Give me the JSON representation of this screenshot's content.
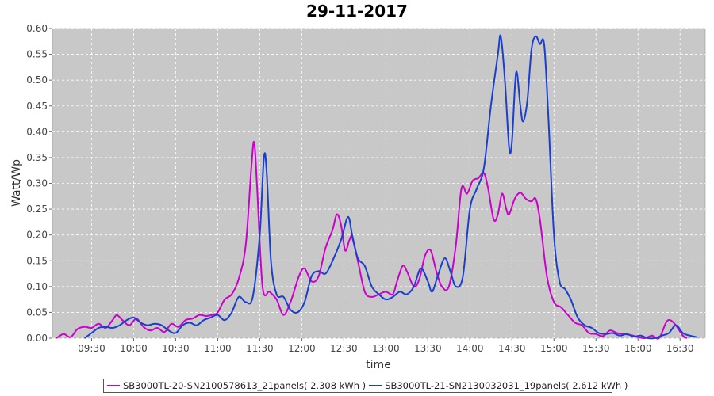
{
  "chart_data": {
    "type": "line",
    "title": "29-11-2017",
    "xlabel": "time",
    "ylabel": "Watt/Wp",
    "x_ticks": [
      "09:30",
      "10:00",
      "10:30",
      "11:00",
      "11:30",
      "12:00",
      "12:30",
      "13:00",
      "13:30",
      "14:00",
      "14:30",
      "15:00",
      "15:30",
      "16:00",
      "16:30"
    ],
    "y_ticks": [
      "0.00",
      "0.05",
      "0.10",
      "0.15",
      "0.20",
      "0.25",
      "0.30",
      "0.35",
      "0.40",
      "0.45",
      "0.50",
      "0.55",
      "0.60"
    ],
    "xlim": [
      "09:02",
      "16:48"
    ],
    "ylim": [
      0,
      0.6
    ],
    "grid": true,
    "legend_position": "bottom",
    "series": [
      {
        "name": "SB3000TL-20-SN2100578613_21panels( 2.308 kWh )",
        "color": "#cc00cc",
        "points": [
          [
            "09:05",
            0.0
          ],
          [
            "09:10",
            0.008
          ],
          [
            "09:15",
            0.002
          ],
          [
            "09:20",
            0.018
          ],
          [
            "09:25",
            0.022
          ],
          [
            "09:30",
            0.02
          ],
          [
            "09:35",
            0.028
          ],
          [
            "09:40",
            0.02
          ],
          [
            "09:45",
            0.035
          ],
          [
            "09:48",
            0.045
          ],
          [
            "09:52",
            0.035
          ],
          [
            "09:57",
            0.025
          ],
          [
            "10:02",
            0.038
          ],
          [
            "10:07",
            0.022
          ],
          [
            "10:12",
            0.015
          ],
          [
            "10:17",
            0.02
          ],
          [
            "10:22",
            0.012
          ],
          [
            "10:27",
            0.028
          ],
          [
            "10:32",
            0.022
          ],
          [
            "10:37",
            0.035
          ],
          [
            "10:42",
            0.038
          ],
          [
            "10:47",
            0.045
          ],
          [
            "10:52",
            0.043
          ],
          [
            "10:57",
            0.046
          ],
          [
            "11:00",
            0.05
          ],
          [
            "11:05",
            0.075
          ],
          [
            "11:10",
            0.085
          ],
          [
            "11:15",
            0.115
          ],
          [
            "11:20",
            0.18
          ],
          [
            "11:24",
            0.33
          ],
          [
            "11:26",
            0.38
          ],
          [
            "11:28",
            0.3
          ],
          [
            "11:32",
            0.1
          ],
          [
            "11:37",
            0.09
          ],
          [
            "11:42",
            0.075
          ],
          [
            "11:47",
            0.045
          ],
          [
            "11:52",
            0.07
          ],
          [
            "11:58",
            0.12
          ],
          [
            "12:02",
            0.135
          ],
          [
            "12:07",
            0.11
          ],
          [
            "12:12",
            0.12
          ],
          [
            "12:17",
            0.175
          ],
          [
            "12:22",
            0.21
          ],
          [
            "12:25",
            0.24
          ],
          [
            "12:28",
            0.22
          ],
          [
            "12:31",
            0.17
          ],
          [
            "12:34",
            0.19
          ],
          [
            "12:36",
            0.195
          ],
          [
            "12:40",
            0.15
          ],
          [
            "12:45",
            0.09
          ],
          [
            "12:50",
            0.08
          ],
          [
            "12:55",
            0.085
          ],
          [
            "13:00",
            0.09
          ],
          [
            "13:05",
            0.085
          ],
          [
            "13:08",
            0.11
          ],
          [
            "13:12",
            0.14
          ],
          [
            "13:15",
            0.13
          ],
          [
            "13:20",
            0.1
          ],
          [
            "13:24",
            0.115
          ],
          [
            "13:28",
            0.16
          ],
          [
            "13:32",
            0.17
          ],
          [
            "13:36",
            0.13
          ],
          [
            "13:40",
            0.1
          ],
          [
            "13:45",
            0.1
          ],
          [
            "13:50",
            0.18
          ],
          [
            "13:54",
            0.29
          ],
          [
            "13:58",
            0.28
          ],
          [
            "14:02",
            0.305
          ],
          [
            "14:06",
            0.31
          ],
          [
            "14:10",
            0.32
          ],
          [
            "14:13",
            0.29
          ],
          [
            "14:17",
            0.23
          ],
          [
            "14:20",
            0.24
          ],
          [
            "14:23",
            0.28
          ],
          [
            "14:26",
            0.25
          ],
          [
            "14:28",
            0.24
          ],
          [
            "14:32",
            0.27
          ],
          [
            "14:36",
            0.282
          ],
          [
            "14:40",
            0.27
          ],
          [
            "14:44",
            0.265
          ],
          [
            "14:47",
            0.27
          ],
          [
            "14:50",
            0.23
          ],
          [
            "14:55",
            0.12
          ],
          [
            "15:00",
            0.07
          ],
          [
            "15:05",
            0.06
          ],
          [
            "15:10",
            0.045
          ],
          [
            "15:15",
            0.03
          ],
          [
            "15:20",
            0.025
          ],
          [
            "15:25",
            0.01
          ],
          [
            "15:30",
            0.008
          ],
          [
            "15:35",
            0.004
          ],
          [
            "15:40",
            0.015
          ],
          [
            "15:45",
            0.01
          ],
          [
            "15:50",
            0.008
          ],
          [
            "15:55",
            0.006
          ],
          [
            "16:00",
            0.002
          ],
          [
            "16:05",
            0.0
          ],
          [
            "16:10",
            0.005
          ],
          [
            "16:15",
            0.0
          ],
          [
            "16:20",
            0.03
          ],
          [
            "16:23",
            0.035
          ],
          [
            "16:27",
            0.025
          ],
          [
            "16:32",
            0.005
          ],
          [
            "16:35",
            0.0
          ]
        ]
      },
      {
        "name": "SB3000TL-21-SN2130032031_19panels( 2.612 kWh )",
        "color": "#1a3fcc",
        "points": [
          [
            "09:25",
            0.0
          ],
          [
            "09:30",
            0.01
          ],
          [
            "09:35",
            0.02
          ],
          [
            "09:40",
            0.022
          ],
          [
            "09:45",
            0.02
          ],
          [
            "09:50",
            0.025
          ],
          [
            "09:55",
            0.035
          ],
          [
            "10:00",
            0.04
          ],
          [
            "10:05",
            0.03
          ],
          [
            "10:10",
            0.025
          ],
          [
            "10:15",
            0.028
          ],
          [
            "10:20",
            0.025
          ],
          [
            "10:25",
            0.015
          ],
          [
            "10:30",
            0.01
          ],
          [
            "10:35",
            0.025
          ],
          [
            "10:40",
            0.03
          ],
          [
            "10:45",
            0.025
          ],
          [
            "10:50",
            0.035
          ],
          [
            "10:55",
            0.04
          ],
          [
            "11:00",
            0.045
          ],
          [
            "11:05",
            0.035
          ],
          [
            "11:10",
            0.05
          ],
          [
            "11:15",
            0.08
          ],
          [
            "11:20",
            0.07
          ],
          [
            "11:25",
            0.08
          ],
          [
            "11:30",
            0.2
          ],
          [
            "11:33",
            0.35
          ],
          [
            "11:35",
            0.32
          ],
          [
            "11:38",
            0.15
          ],
          [
            "11:42",
            0.085
          ],
          [
            "11:47",
            0.08
          ],
          [
            "11:52",
            0.055
          ],
          [
            "11:57",
            0.05
          ],
          [
            "12:02",
            0.07
          ],
          [
            "12:07",
            0.12
          ],
          [
            "12:12",
            0.13
          ],
          [
            "12:17",
            0.125
          ],
          [
            "12:22",
            0.15
          ],
          [
            "12:28",
            0.19
          ],
          [
            "12:33",
            0.235
          ],
          [
            "12:36",
            0.2
          ],
          [
            "12:40",
            0.155
          ],
          [
            "12:45",
            0.14
          ],
          [
            "12:50",
            0.1
          ],
          [
            "12:55",
            0.085
          ],
          [
            "13:00",
            0.075
          ],
          [
            "13:05",
            0.08
          ],
          [
            "13:10",
            0.09
          ],
          [
            "13:15",
            0.085
          ],
          [
            "13:20",
            0.1
          ],
          [
            "13:25",
            0.135
          ],
          [
            "13:30",
            0.11
          ],
          [
            "13:33",
            0.09
          ],
          [
            "13:37",
            0.12
          ],
          [
            "13:42",
            0.155
          ],
          [
            "13:46",
            0.13
          ],
          [
            "13:50",
            0.1
          ],
          [
            "13:55",
            0.12
          ],
          [
            "14:00",
            0.25
          ],
          [
            "14:05",
            0.29
          ],
          [
            "14:10",
            0.33
          ],
          [
            "14:15",
            0.45
          ],
          [
            "14:20",
            0.55
          ],
          [
            "14:22",
            0.585
          ],
          [
            "14:25",
            0.5
          ],
          [
            "14:28",
            0.37
          ],
          [
            "14:30",
            0.38
          ],
          [
            "14:33",
            0.515
          ],
          [
            "14:36",
            0.45
          ],
          [
            "14:38",
            0.42
          ],
          [
            "14:41",
            0.46
          ],
          [
            "14:44",
            0.56
          ],
          [
            "14:47",
            0.585
          ],
          [
            "14:50",
            0.57
          ],
          [
            "14:53",
            0.57
          ],
          [
            "14:56",
            0.43
          ],
          [
            "15:00",
            0.2
          ],
          [
            "15:04",
            0.11
          ],
          [
            "15:08",
            0.095
          ],
          [
            "15:12",
            0.075
          ],
          [
            "15:17",
            0.04
          ],
          [
            "15:22",
            0.025
          ],
          [
            "15:27",
            0.02
          ],
          [
            "15:32",
            0.01
          ],
          [
            "15:37",
            0.008
          ],
          [
            "15:42",
            0.01
          ],
          [
            "15:47",
            0.005
          ],
          [
            "15:52",
            0.008
          ],
          [
            "15:57",
            0.003
          ],
          [
            "16:02",
            0.005
          ],
          [
            "16:07",
            0.0
          ],
          [
            "16:12",
            0.0
          ],
          [
            "16:17",
            0.005
          ],
          [
            "16:22",
            0.01
          ],
          [
            "16:27",
            0.025
          ],
          [
            "16:32",
            0.01
          ],
          [
            "16:37",
            0.005
          ],
          [
            "16:42",
            0.002
          ]
        ]
      }
    ]
  }
}
